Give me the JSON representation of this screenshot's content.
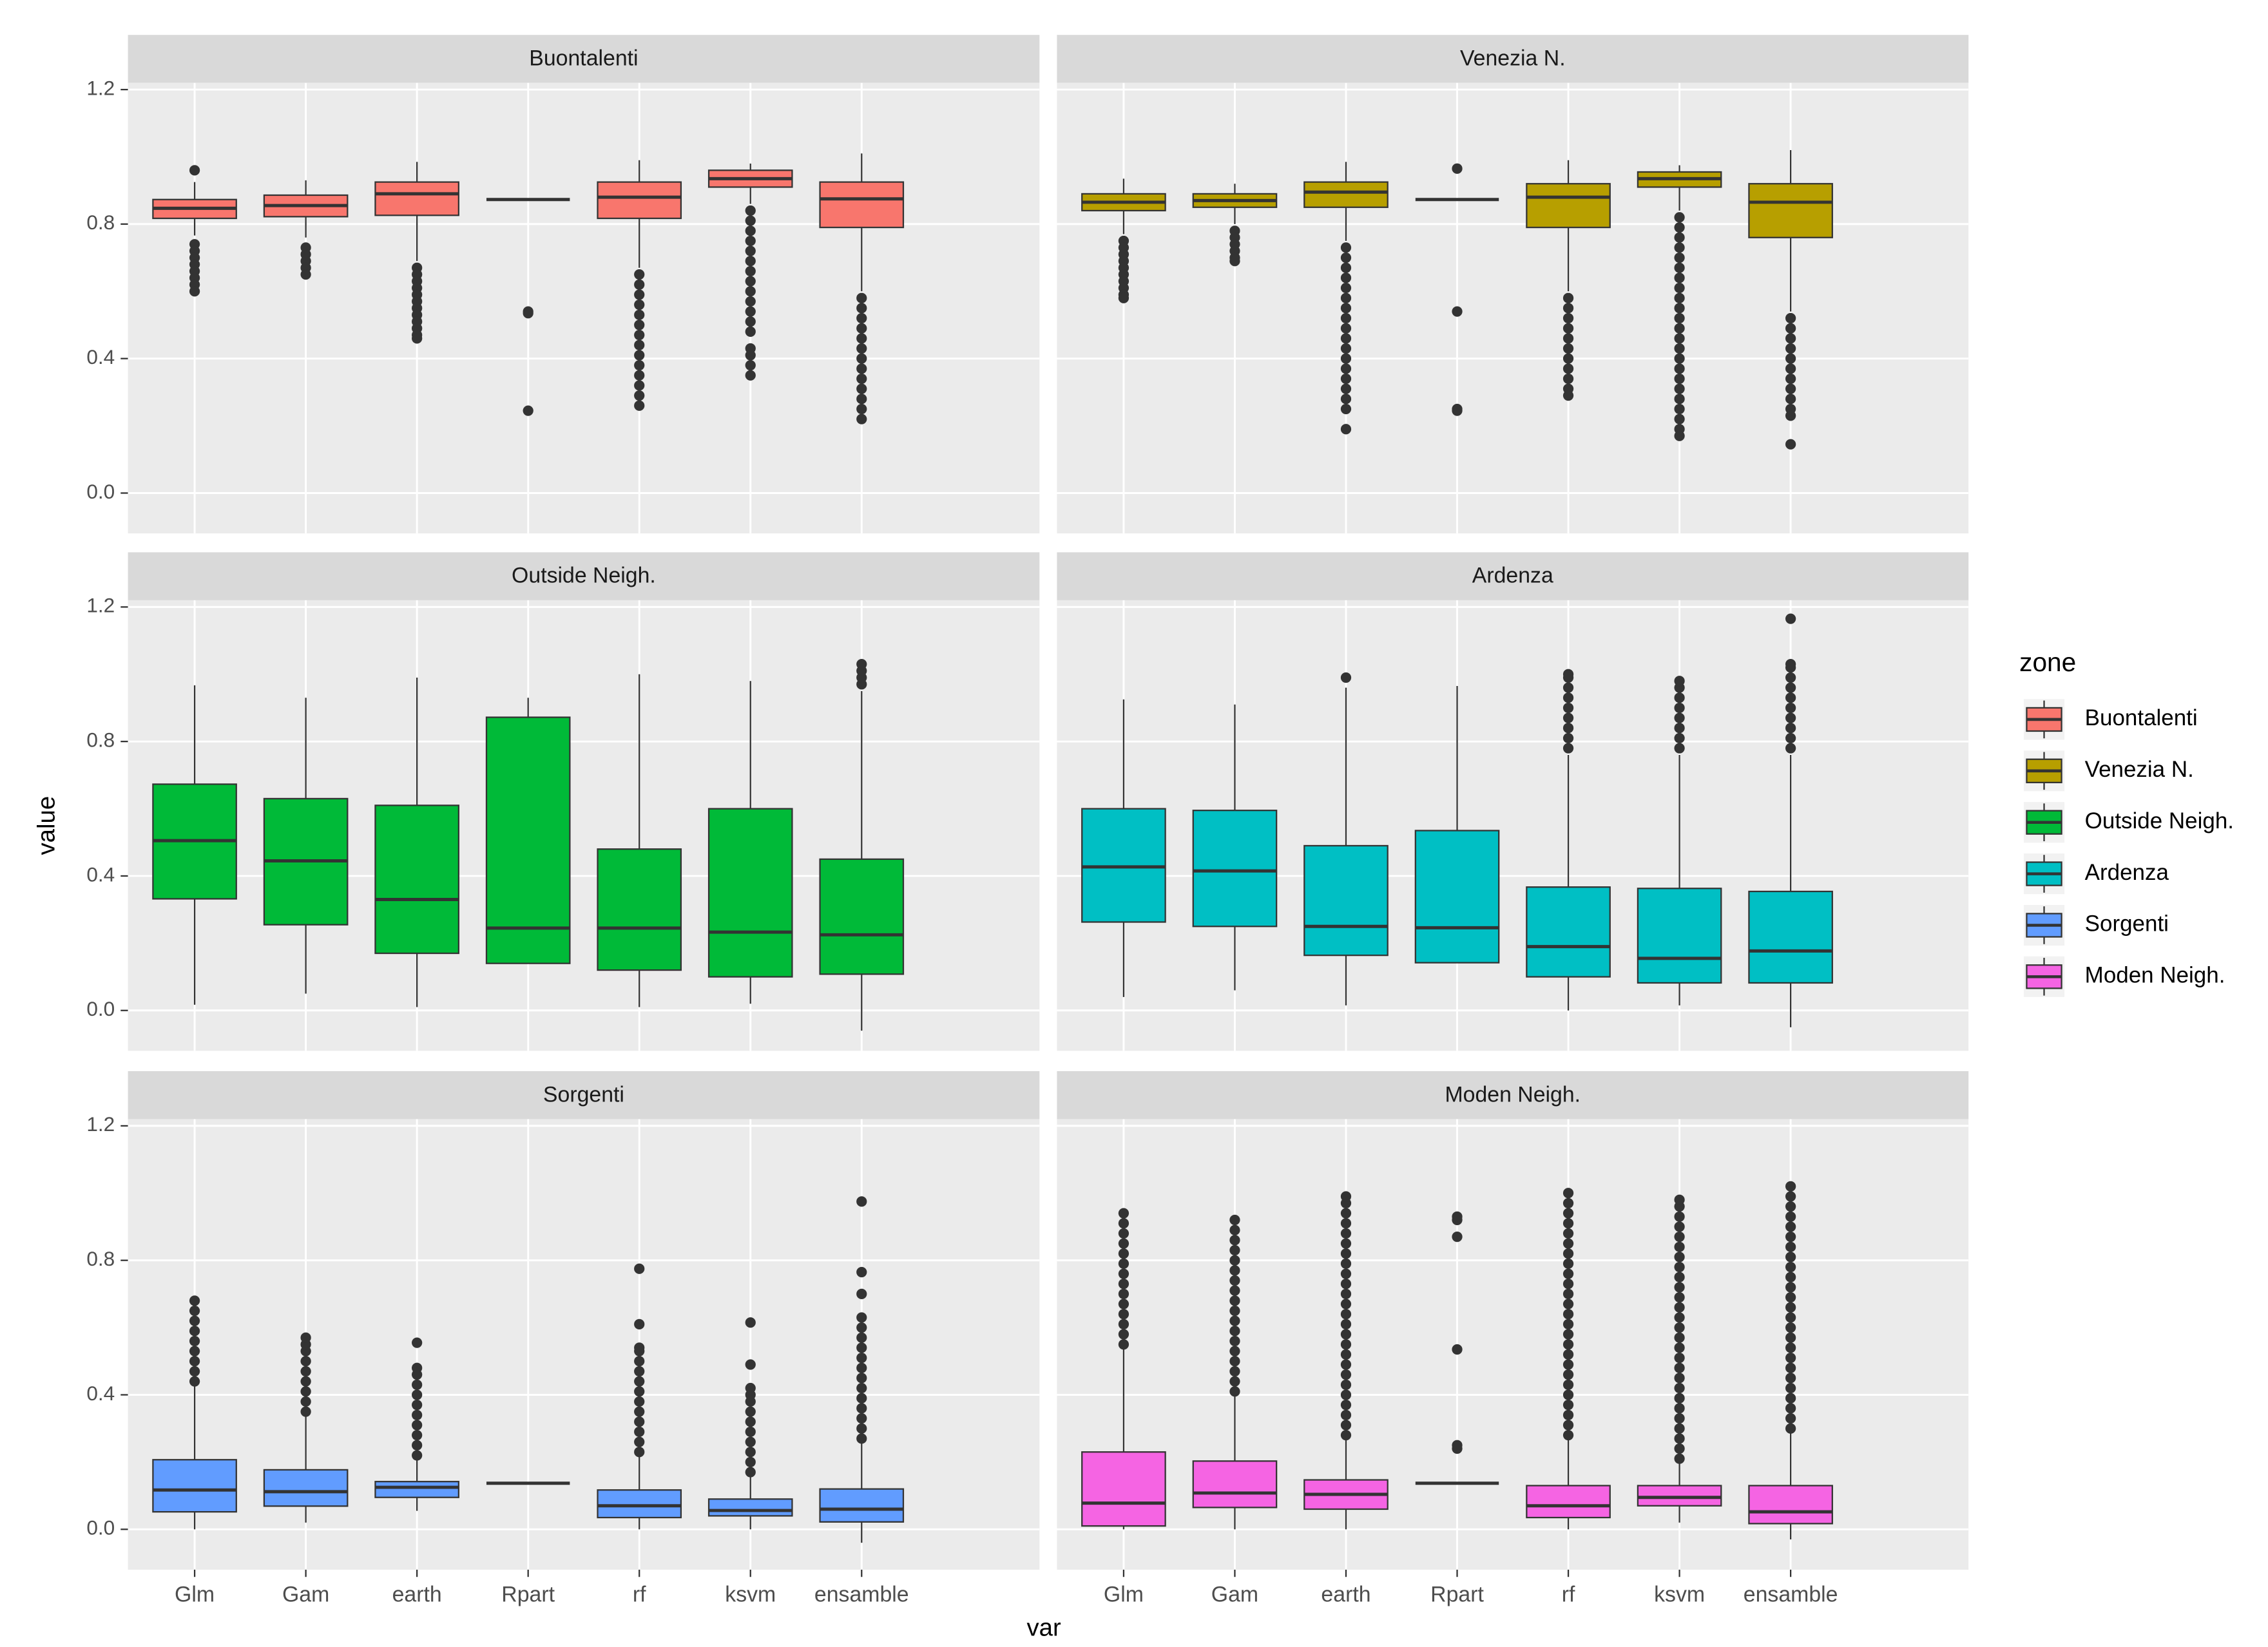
{
  "chart_data": {
    "type": "box",
    "xlabel": "var",
    "ylabel": "value",
    "legend_title": "zone",
    "categories": [
      "Glm",
      "Gam",
      "earth",
      "Rpart",
      "rf",
      "ksvm",
      "ensamble"
    ],
    "ylim": [
      -0.12,
      1.22
    ],
    "yticks": [
      {
        "value": 0,
        "label": "0.0"
      },
      0.4,
      0.8,
      1.2
    ],
    "grid": true,
    "panels": [
      {
        "title": "Buontalenti",
        "color": "#F8766D",
        "boxes": [
          {
            "whislo": 0.766,
            "q1": 0.817,
            "med": 0.847,
            "q3": 0.873,
            "whishi": 0.925,
            "fliers": [
              0.96,
              0.74,
              0.72,
              0.7,
              0.68,
              0.66,
              0.64,
              0.62,
              0.6
            ]
          },
          {
            "whislo": 0.76,
            "q1": 0.822,
            "med": 0.855,
            "q3": 0.886,
            "whishi": 0.93,
            "fliers": [
              0.73,
              0.71,
              0.69,
              0.67,
              0.65
            ]
          },
          {
            "whislo": 0.69,
            "q1": 0.826,
            "med": 0.89,
            "q3": 0.925,
            "whishi": 0.985,
            "fliers": [
              0.67,
              0.65,
              0.63,
              0.61,
              0.59,
              0.57,
              0.55,
              0.53,
              0.51,
              0.49,
              0.47,
              0.46
            ]
          },
          {
            "whislo": 0.873,
            "q1": 0.873,
            "med": 0.873,
            "q3": 0.873,
            "whishi": 0.873,
            "fliers": [
              0.54,
              0.535,
              0.245
            ]
          },
          {
            "whislo": 0.67,
            "q1": 0.817,
            "med": 0.88,
            "q3": 0.925,
            "whishi": 0.99,
            "fliers": [
              0.65,
              0.62,
              0.59,
              0.56,
              0.53,
              0.5,
              0.47,
              0.44,
              0.41,
              0.38,
              0.35,
              0.32,
              0.29,
              0.26
            ]
          },
          {
            "whislo": 0.86,
            "q1": 0.91,
            "med": 0.935,
            "q3": 0.96,
            "whishi": 0.98,
            "fliers": [
              0.84,
              0.81,
              0.78,
              0.75,
              0.72,
              0.69,
              0.66,
              0.63,
              0.6,
              0.57,
              0.54,
              0.51,
              0.48,
              0.43,
              0.41,
              0.38,
              0.35
            ]
          },
          {
            "whislo": 0.6,
            "q1": 0.79,
            "med": 0.875,
            "q3": 0.925,
            "whishi": 1.01,
            "fliers": [
              0.58,
              0.55,
              0.52,
              0.49,
              0.46,
              0.43,
              0.4,
              0.37,
              0.34,
              0.31,
              0.28,
              0.25,
              0.22
            ]
          }
        ]
      },
      {
        "title": "Venezia N.",
        "color": "#B79F00",
        "boxes": [
          {
            "whislo": 0.77,
            "q1": 0.84,
            "med": 0.865,
            "q3": 0.89,
            "whishi": 0.935,
            "fliers": [
              0.75,
              0.73,
              0.71,
              0.69,
              0.67,
              0.65,
              0.63,
              0.61,
              0.59,
              0.58
            ]
          },
          {
            "whislo": 0.8,
            "q1": 0.85,
            "med": 0.87,
            "q3": 0.89,
            "whishi": 0.92,
            "fliers": [
              0.78,
              0.76,
              0.74,
              0.72,
              0.7,
              0.69
            ]
          },
          {
            "whislo": 0.75,
            "q1": 0.85,
            "med": 0.895,
            "q3": 0.925,
            "whishi": 0.985,
            "fliers": [
              0.73,
              0.7,
              0.67,
              0.64,
              0.61,
              0.58,
              0.55,
              0.52,
              0.49,
              0.46,
              0.43,
              0.4,
              0.37,
              0.34,
              0.31,
              0.28,
              0.25,
              0.19
            ]
          },
          {
            "whislo": 0.873,
            "q1": 0.873,
            "med": 0.873,
            "q3": 0.873,
            "whishi": 0.873,
            "fliers": [
              0.965,
              0.54,
              0.25,
              0.245
            ]
          },
          {
            "whislo": 0.6,
            "q1": 0.79,
            "med": 0.88,
            "q3": 0.92,
            "whishi": 0.99,
            "fliers": [
              0.58,
              0.55,
              0.52,
              0.49,
              0.46,
              0.43,
              0.4,
              0.37,
              0.34,
              0.31,
              0.29
            ]
          },
          {
            "whislo": 0.84,
            "q1": 0.91,
            "med": 0.935,
            "q3": 0.955,
            "whishi": 0.975,
            "fliers": [
              0.82,
              0.79,
              0.76,
              0.73,
              0.7,
              0.67,
              0.64,
              0.61,
              0.58,
              0.55,
              0.52,
              0.49,
              0.46,
              0.43,
              0.4,
              0.37,
              0.34,
              0.31,
              0.28,
              0.25,
              0.22,
              0.19,
              0.17
            ]
          },
          {
            "whislo": 0.54,
            "q1": 0.76,
            "med": 0.865,
            "q3": 0.92,
            "whishi": 1.02,
            "fliers": [
              0.52,
              0.49,
              0.46,
              0.43,
              0.4,
              0.37,
              0.34,
              0.31,
              0.28,
              0.25,
              0.23,
              0.145
            ]
          }
        ]
      },
      {
        "title": "Outside Neigh.",
        "color": "#00BA38",
        "boxes": [
          {
            "whislo": 0.017,
            "q1": 0.332,
            "med": 0.505,
            "q3": 0.673,
            "whishi": 0.967,
            "fliers": []
          },
          {
            "whislo": 0.05,
            "q1": 0.255,
            "med": 0.445,
            "q3": 0.63,
            "whishi": 0.93,
            "fliers": []
          },
          {
            "whislo": 0.01,
            "q1": 0.17,
            "med": 0.33,
            "q3": 0.61,
            "whishi": 0.99,
            "fliers": []
          },
          {
            "whislo": 0.14,
            "q1": 0.14,
            "med": 0.245,
            "q3": 0.872,
            "whishi": 0.93,
            "fliers": []
          },
          {
            "whislo": 0.01,
            "q1": 0.12,
            "med": 0.245,
            "q3": 0.48,
            "whishi": 1.0,
            "fliers": []
          },
          {
            "whislo": 0.02,
            "q1": 0.1,
            "med": 0.233,
            "q3": 0.6,
            "whishi": 0.98,
            "fliers": []
          },
          {
            "whislo": -0.06,
            "q1": 0.108,
            "med": 0.225,
            "q3": 0.45,
            "whishi": 0.95,
            "fliers": [
              0.97,
              0.99,
              1.01,
              1.03
            ]
          }
        ]
      },
      {
        "title": "Ardenza",
        "color": "#00BFC4",
        "boxes": [
          {
            "whislo": 0.04,
            "q1": 0.263,
            "med": 0.427,
            "q3": 0.6,
            "whishi": 0.925,
            "fliers": []
          },
          {
            "whislo": 0.06,
            "q1": 0.25,
            "med": 0.415,
            "q3": 0.595,
            "whishi": 0.91,
            "fliers": []
          },
          {
            "whislo": 0.015,
            "q1": 0.164,
            "med": 0.25,
            "q3": 0.49,
            "whishi": 0.96,
            "fliers": [
              0.99
            ]
          },
          {
            "whislo": 0.142,
            "q1": 0.142,
            "med": 0.246,
            "q3": 0.535,
            "whishi": 0.965,
            "fliers": []
          },
          {
            "whislo": 0.0,
            "q1": 0.1,
            "med": 0.19,
            "q3": 0.367,
            "whishi": 0.76,
            "fliers": [
              0.78,
              0.81,
              0.84,
              0.87,
              0.9,
              0.93,
              0.96,
              0.99,
              1.0
            ]
          },
          {
            "whislo": 0.015,
            "q1": 0.082,
            "med": 0.155,
            "q3": 0.363,
            "whishi": 0.76,
            "fliers": [
              0.78,
              0.81,
              0.84,
              0.87,
              0.9,
              0.93,
              0.96,
              0.98
            ]
          },
          {
            "whislo": -0.05,
            "q1": 0.082,
            "med": 0.177,
            "q3": 0.354,
            "whishi": 0.76,
            "fliers": [
              0.78,
              0.81,
              0.84,
              0.87,
              0.9,
              0.93,
              0.96,
              0.99,
              1.02,
              1.03,
              1.165
            ]
          }
        ]
      },
      {
        "title": "Sorgenti",
        "color": "#619CFF",
        "boxes": [
          {
            "whislo": 0.0,
            "q1": 0.052,
            "med": 0.117,
            "q3": 0.207,
            "whishi": 0.43,
            "fliers": [
              0.44,
              0.47,
              0.5,
              0.53,
              0.56,
              0.59,
              0.62,
              0.65,
              0.68
            ]
          },
          {
            "whislo": 0.02,
            "q1": 0.069,
            "med": 0.112,
            "q3": 0.177,
            "whishi": 0.34,
            "fliers": [
              0.35,
              0.38,
              0.41,
              0.44,
              0.47,
              0.5,
              0.53,
              0.55,
              0.57
            ]
          },
          {
            "whislo": 0.055,
            "q1": 0.095,
            "med": 0.125,
            "q3": 0.142,
            "whishi": 0.21,
            "fliers": [
              0.22,
              0.25,
              0.28,
              0.31,
              0.34,
              0.37,
              0.4,
              0.43,
              0.46,
              0.48,
              0.555
            ]
          },
          {
            "whislo": 0.137,
            "q1": 0.137,
            "med": 0.137,
            "q3": 0.137,
            "whishi": 0.137,
            "fliers": []
          },
          {
            "whislo": 0.0,
            "q1": 0.035,
            "med": 0.07,
            "q3": 0.117,
            "whishi": 0.22,
            "fliers": [
              0.23,
              0.26,
              0.29,
              0.32,
              0.35,
              0.38,
              0.41,
              0.44,
              0.47,
              0.5,
              0.53,
              0.54,
              0.61,
              0.775
            ]
          },
          {
            "whislo": 0.0,
            "q1": 0.04,
            "med": 0.056,
            "q3": 0.09,
            "whishi": 0.16,
            "fliers": [
              0.17,
              0.2,
              0.23,
              0.26,
              0.29,
              0.32,
              0.35,
              0.38,
              0.4,
              0.42,
              0.49,
              0.615
            ]
          },
          {
            "whislo": -0.04,
            "q1": 0.022,
            "med": 0.06,
            "q3": 0.12,
            "whishi": 0.26,
            "fliers": [
              0.27,
              0.3,
              0.33,
              0.36,
              0.39,
              0.42,
              0.45,
              0.48,
              0.51,
              0.54,
              0.57,
              0.6,
              0.63,
              0.7,
              0.765,
              0.975
            ]
          }
        ]
      },
      {
        "title": "Moden Neigh.",
        "color": "#F564E3",
        "boxes": [
          {
            "whislo": 0.0,
            "q1": 0.01,
            "med": 0.078,
            "q3": 0.23,
            "whishi": 0.54,
            "fliers": [
              0.55,
              0.58,
              0.61,
              0.64,
              0.67,
              0.7,
              0.73,
              0.76,
              0.79,
              0.82,
              0.85,
              0.88,
              0.91,
              0.94
            ]
          },
          {
            "whislo": 0.0,
            "q1": 0.065,
            "med": 0.108,
            "q3": 0.203,
            "whishi": 0.4,
            "fliers": [
              0.41,
              0.44,
              0.47,
              0.5,
              0.53,
              0.56,
              0.59,
              0.62,
              0.65,
              0.68,
              0.71,
              0.74,
              0.77,
              0.8,
              0.83,
              0.86,
              0.89,
              0.92
            ]
          },
          {
            "whislo": 0.0,
            "q1": 0.06,
            "med": 0.104,
            "q3": 0.147,
            "whishi": 0.27,
            "fliers": [
              0.28,
              0.31,
              0.34,
              0.37,
              0.4,
              0.43,
              0.46,
              0.49,
              0.52,
              0.55,
              0.58,
              0.61,
              0.64,
              0.67,
              0.7,
              0.73,
              0.76,
              0.79,
              0.82,
              0.85,
              0.88,
              0.91,
              0.94,
              0.97,
              0.99
            ]
          },
          {
            "whislo": 0.137,
            "q1": 0.137,
            "med": 0.137,
            "q3": 0.137,
            "whishi": 0.137,
            "fliers": [
              0.24,
              0.25,
              0.535,
              0.87,
              0.92,
              0.93
            ]
          },
          {
            "whislo": 0.0,
            "q1": 0.035,
            "med": 0.07,
            "q3": 0.13,
            "whishi": 0.27,
            "fliers": [
              0.28,
              0.31,
              0.34,
              0.37,
              0.4,
              0.43,
              0.46,
              0.49,
              0.52,
              0.55,
              0.58,
              0.61,
              0.64,
              0.67,
              0.7,
              0.73,
              0.76,
              0.79,
              0.82,
              0.85,
              0.88,
              0.91,
              0.94,
              0.97,
              1.0
            ]
          },
          {
            "whislo": 0.02,
            "q1": 0.07,
            "med": 0.095,
            "q3": 0.13,
            "whishi": 0.2,
            "fliers": [
              0.21,
              0.24,
              0.27,
              0.3,
              0.33,
              0.36,
              0.39,
              0.42,
              0.45,
              0.48,
              0.51,
              0.54,
              0.57,
              0.6,
              0.63,
              0.66,
              0.69,
              0.72,
              0.75,
              0.78,
              0.81,
              0.84,
              0.87,
              0.9,
              0.93,
              0.96,
              0.98
            ]
          },
          {
            "whislo": -0.03,
            "q1": 0.017,
            "med": 0.052,
            "q3": 0.13,
            "whishi": 0.29,
            "fliers": [
              0.3,
              0.33,
              0.36,
              0.39,
              0.42,
              0.45,
              0.48,
              0.51,
              0.54,
              0.57,
              0.6,
              0.63,
              0.66,
              0.69,
              0.72,
              0.75,
              0.78,
              0.81,
              0.84,
              0.87,
              0.9,
              0.93,
              0.96,
              0.99,
              1.02
            ]
          }
        ]
      }
    ]
  }
}
